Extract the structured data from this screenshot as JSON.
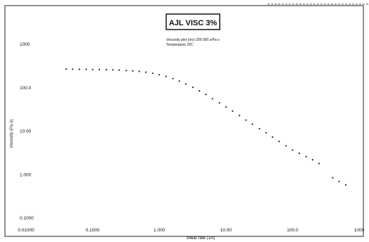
{
  "chart_data": {
    "type": "scatter",
    "title": "AJL VISC 3%",
    "subtitle_lines": [
      "Viscosity plot (rev) 200 000 s/Pa·s",
      "Temperature 25C"
    ],
    "xlabel": "shear rate (1/s)",
    "ylabel": "viscosity (Pa·s)",
    "x_scale": "log",
    "y_scale": "log",
    "xlim": [
      0.01,
      1000
    ],
    "ylim": [
      0.1,
      1000
    ],
    "x_tick_labels": [
      "0.01000",
      "0.1000",
      "1.000",
      "10.00",
      "100.0",
      "1000"
    ],
    "y_tick_labels": [
      "0.1000",
      "1.000",
      "10.00",
      "100.0",
      "1000"
    ],
    "grid": false,
    "series": [
      {
        "color": "#222222",
        "x": [
          0.04,
          0.05,
          0.063,
          0.08,
          0.1,
          0.126,
          0.16,
          0.2,
          0.25,
          0.32,
          0.4,
          0.5,
          0.63,
          0.8,
          1.0,
          1.26,
          1.6,
          2.0,
          2.5,
          3.2,
          4.0,
          5.0,
          6.3,
          8.0,
          10,
          12.6,
          16,
          20,
          25,
          32,
          40,
          50,
          63,
          80,
          100,
          126,
          160,
          200,
          250,
          400,
          500,
          630
        ],
        "y": [
          270,
          268,
          266,
          265,
          263,
          262,
          260,
          258,
          255,
          250,
          245,
          238,
          228,
          215,
          200,
          182,
          162,
          142,
          122,
          102,
          85,
          70,
          56,
          45,
          36,
          29,
          23,
          18,
          14.5,
          11.5,
          9.2,
          7.3,
          5.8,
          4.6,
          3.7,
          3.1,
          2.6,
          2.2,
          1.8,
          0.85,
          0.7,
          0.58
        ]
      }
    ]
  }
}
